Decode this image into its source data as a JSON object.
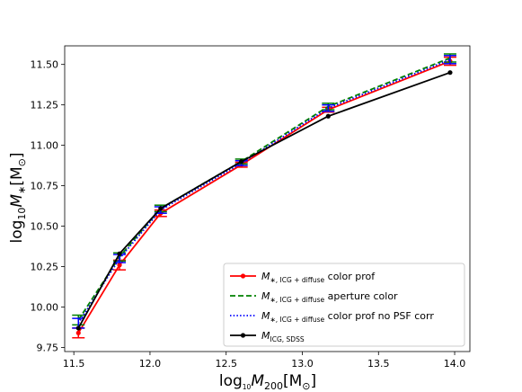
{
  "chart_data": {
    "type": "line",
    "xlabel": {
      "main": "log",
      "sub10": "10",
      "var": "M",
      "varsub": "200",
      "unit_open": "[M",
      "unit_sub": "⊙",
      "unit_close": "]"
    },
    "ylabel": {
      "main": "log",
      "sub10": "10",
      "var": "M",
      "varsub": "∗",
      "unit_open": "[M",
      "unit_sub": "⊙",
      "unit_close": "]"
    },
    "xlim": [
      11.44,
      14.1
    ],
    "ylim": [
      9.725,
      11.615
    ],
    "xticks": [
      "11.5",
      "12.0",
      "12.5",
      "13.0",
      "13.5",
      "14.0"
    ],
    "yticks": [
      "9.75",
      "10.00",
      "10.25",
      "10.50",
      "10.75",
      "11.00",
      "11.25",
      "11.50"
    ],
    "x": [
      11.53,
      11.8,
      12.07,
      12.6,
      13.17,
      13.97
    ],
    "series": [
      {
        "name": {
          "var": "M",
          "sub": "∗, ICG + diffuse",
          "rest": " color prof"
        },
        "color": "#ff0000",
        "style": "solid",
        "marker": true,
        "values": [
          9.84,
          10.26,
          10.58,
          10.88,
          11.22,
          11.52
        ],
        "err": [
          0.03,
          0.03,
          0.02,
          0.015,
          0.015,
          0.025
        ]
      },
      {
        "name": {
          "var": "M",
          "sub": "∗, ICG + diffuse",
          "rest": " aperture color"
        },
        "color": "#008000",
        "style": "dashed",
        "marker": false,
        "values": [
          9.92,
          10.31,
          10.61,
          10.9,
          11.24,
          11.54
        ],
        "err": [
          0.03,
          0.025,
          0.02,
          0.015,
          0.02,
          0.025
        ]
      },
      {
        "name": {
          "var": "M",
          "sub": "∗, ICG + diffuse",
          "rest": " color prof no PSF corr"
        },
        "color": "#0000ff",
        "style": "dotted",
        "marker": false,
        "values": [
          9.9,
          10.3,
          10.6,
          10.89,
          11.23,
          11.53
        ],
        "err": [
          0.03,
          0.025,
          0.02,
          0.015,
          0.02,
          0.025
        ]
      },
      {
        "name": {
          "var": "M",
          "sub": "ICG, SDSS",
          "rest": ""
        },
        "color": "#000000",
        "style": "solid",
        "marker": true,
        "values": [
          9.87,
          10.33,
          10.61,
          10.9,
          11.18,
          11.45
        ],
        "err": null
      }
    ],
    "grid": false,
    "legend_position": "lower-right"
  }
}
